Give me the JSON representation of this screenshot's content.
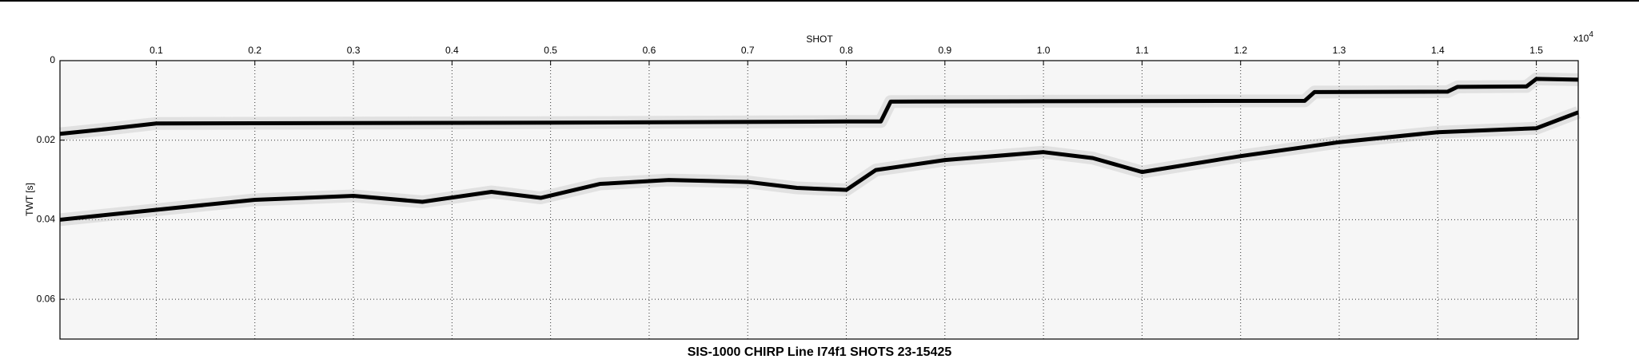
{
  "chart_data": {
    "type": "line",
    "title": "SIS-1000 CHIRP Line I74f1 SHOTS 23-15425",
    "x_label": "SHOT",
    "x_multiplier": "x10",
    "x_multiplier_exponent": "4",
    "y_label": "TWT [s]",
    "xlim": [
      0.0023,
      1.5425
    ],
    "ylim": [
      0.07,
      0
    ],
    "xticks": [
      0.1,
      0.2,
      0.3,
      0.4,
      0.5,
      0.6,
      0.7,
      0.8,
      0.9,
      {
        "value": 1,
        "label": "1.0"
      },
      1.1,
      1.2,
      1.3,
      1.4,
      1.5
    ],
    "yticks": [
      0,
      0.02,
      0.04,
      0.06
    ],
    "grid": true,
    "series": [
      {
        "color": "#000000",
        "x": [
          0.0023,
          0.05,
          0.1,
          0.3,
          0.5,
          0.8,
          0.835,
          0.845,
          1.0,
          1.265,
          1.275,
          1.41,
          1.42,
          1.49,
          1.5,
          1.5425
        ],
        "values": [
          0.0184,
          0.0172,
          0.0158,
          0.0157,
          0.0156,
          0.0153,
          0.0153,
          0.0103,
          0.0102,
          0.0101,
          0.0079,
          0.0078,
          0.0066,
          0.0065,
          0.0046,
          0.0048
        ]
      },
      {
        "color": "#000000",
        "x": [
          0.0023,
          0.1,
          0.2,
          0.3,
          0.37,
          0.44,
          0.49,
          0.55,
          0.62,
          0.7,
          0.75,
          0.8,
          0.83,
          0.9,
          1.0,
          1.05,
          1.1,
          1.2,
          1.3,
          1.4,
          1.5,
          1.5425
        ],
        "values": [
          0.04,
          0.0375,
          0.035,
          0.034,
          0.0355,
          0.033,
          0.0345,
          0.031,
          0.03,
          0.0305,
          0.032,
          0.0325,
          0.0275,
          0.025,
          0.023,
          0.0245,
          0.028,
          0.024,
          0.0205,
          0.018,
          0.017,
          0.013
        ]
      }
    ]
  }
}
